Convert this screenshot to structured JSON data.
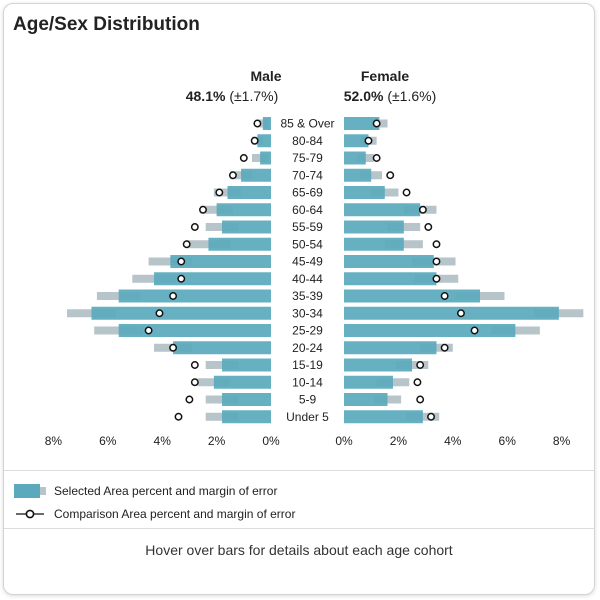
{
  "title": "Age/Sex Distribution",
  "male": {
    "label": "Male",
    "percent": "48.1%",
    "moe": "(±1.7%)"
  },
  "female": {
    "label": "Female",
    "percent": "52.0%",
    "moe": "(±1.6%)"
  },
  "legend": {
    "selected": "Selected Area percent and margin of error",
    "comparison": "Comparison Area percent and margin of error"
  },
  "hint": "Hover over bars for details about each age cohort",
  "colors": {
    "bar": "#5aa9bd",
    "bar_edge": "#4a97ab",
    "moe": "#b7c4c9",
    "marker": "#111111"
  },
  "chart_data": {
    "type": "bar",
    "categories": [
      "85 & Over",
      "80-84",
      "75-79",
      "70-74",
      "65-69",
      "60-64",
      "55-59",
      "50-54",
      "45-49",
      "40-44",
      "35-39",
      "30-34",
      "25-29",
      "20-24",
      "15-19",
      "10-14",
      "5-9",
      "Under 5"
    ],
    "xlim": [
      0,
      8
    ],
    "ticks": [
      "8%",
      "6%",
      "4%",
      "2%",
      "0%",
      "0%",
      "2%",
      "4%",
      "6%",
      "8%"
    ],
    "tick_values": [
      8,
      6,
      4,
      2,
      0,
      0,
      2,
      4,
      6,
      8
    ],
    "series": [
      {
        "name": "Male",
        "values": [
          0.3,
          0.5,
          0.4,
          1.1,
          1.6,
          2.0,
          1.8,
          2.3,
          3.7,
          4.3,
          5.6,
          6.6,
          5.6,
          3.6,
          1.8,
          2.1,
          1.8,
          1.8
        ],
        "moe": [
          0.2,
          0.2,
          0.3,
          0.4,
          0.5,
          0.6,
          0.6,
          0.8,
          0.8,
          0.8,
          0.8,
          0.9,
          0.9,
          0.7,
          0.6,
          0.6,
          0.6,
          0.6
        ],
        "comparison": [
          0.5,
          0.6,
          1.0,
          1.4,
          1.9,
          2.5,
          2.8,
          3.1,
          3.3,
          3.3,
          3.6,
          4.1,
          4.5,
          3.6,
          2.8,
          2.8,
          3.0,
          3.4
        ]
      },
      {
        "name": "Female",
        "values": [
          1.3,
          0.9,
          0.8,
          1.0,
          1.5,
          2.8,
          2.2,
          2.2,
          3.3,
          3.4,
          5.0,
          7.9,
          6.3,
          3.4,
          2.5,
          1.8,
          1.6,
          2.9
        ],
        "moe": [
          0.3,
          0.3,
          0.3,
          0.4,
          0.5,
          0.6,
          0.6,
          0.7,
          0.8,
          0.8,
          0.9,
          0.9,
          0.9,
          0.6,
          0.6,
          0.6,
          0.5,
          0.6
        ],
        "comparison": [
          1.2,
          0.9,
          1.2,
          1.7,
          2.3,
          2.9,
          3.1,
          3.4,
          3.4,
          3.4,
          3.7,
          4.3,
          4.8,
          3.7,
          2.8,
          2.7,
          2.8,
          3.2
        ]
      }
    ]
  }
}
